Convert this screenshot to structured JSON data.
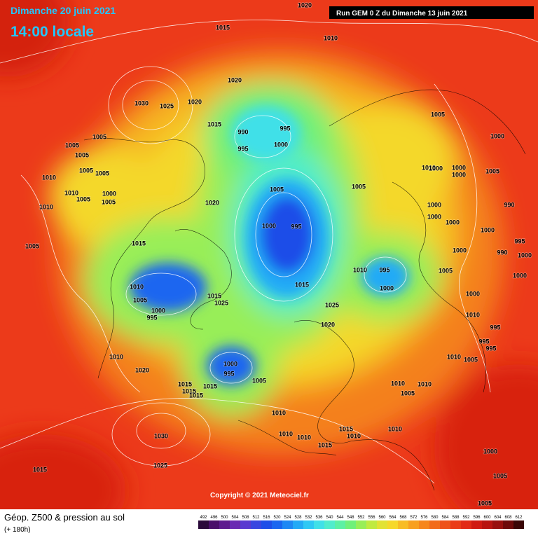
{
  "header": {
    "date": "Dimanche 20 juin 2021",
    "time": "14:00 locale",
    "run": "Run GEM 0 Z du Dimanche 13 juin 2021"
  },
  "copyright": "Copyright © 2021 Meteociel.fr",
  "footer": {
    "title": "Géop. Z500 & pression au sol",
    "lead": "(+ 180h)"
  },
  "colorbar": {
    "ticks": [
      492,
      496,
      500,
      504,
      508,
      512,
      516,
      520,
      524,
      528,
      532,
      536,
      540,
      544,
      548,
      552,
      556,
      560,
      564,
      568,
      572,
      576,
      580,
      584,
      588,
      592,
      596,
      600,
      604,
      608,
      612
    ],
    "colors": [
      "#2a0a3a",
      "#4a0f6a",
      "#5e1a8e",
      "#6a2ab2",
      "#5a3ad0",
      "#3a46e0",
      "#1e4ee8",
      "#1a66f0",
      "#1e88f4",
      "#22aaf6",
      "#2ec8f4",
      "#40e0e8",
      "#50eccc",
      "#5cf0a4",
      "#70f07a",
      "#98ee58",
      "#c0ea40",
      "#e2e234",
      "#f6d82a",
      "#f8bc24",
      "#f8a020",
      "#f6861c",
      "#f26c1a",
      "#ee521a",
      "#ea3c18",
      "#e22a16",
      "#d01a12",
      "#b81410",
      "#98100e",
      "#6e0a0a",
      "#3a0606"
    ]
  },
  "isobar_labels": [
    "1020",
    "1015",
    "1010",
    "1020",
    "1030",
    "1025",
    "1020",
    "1015",
    "990",
    "995",
    "995",
    "1000",
    "1005",
    "1000",
    "1005",
    "1005",
    "1005",
    "1005",
    "1005",
    "1010",
    "1010",
    "1000",
    "1005",
    "1005",
    "1010",
    "1005",
    "1005",
    "1010",
    "1000",
    "1000",
    "1000",
    "1005",
    "1020",
    "990",
    "1000",
    "1000",
    "1000",
    "1000",
    "1000",
    "995",
    "1015",
    "995",
    "1005",
    "1000",
    "990",
    "1000",
    "1010",
    "995",
    "1005",
    "1000",
    "1010",
    "1015",
    "1000",
    "1000",
    "1005",
    "1015",
    "1025",
    "1025",
    "1000",
    "995",
    "1010",
    "1020",
    "995",
    "995",
    "995",
    "1010",
    "1000",
    "1010",
    "1005",
    "1020",
    "995",
    "1005",
    "1010",
    "1010",
    "1015",
    "1015",
    "1015",
    "1015",
    "1005",
    "1010",
    "1010",
    "1010",
    "1015",
    "1010",
    "1010",
    "1015",
    "1030",
    "1000",
    "1025",
    "1015",
    "1005",
    "1005"
  ]
}
